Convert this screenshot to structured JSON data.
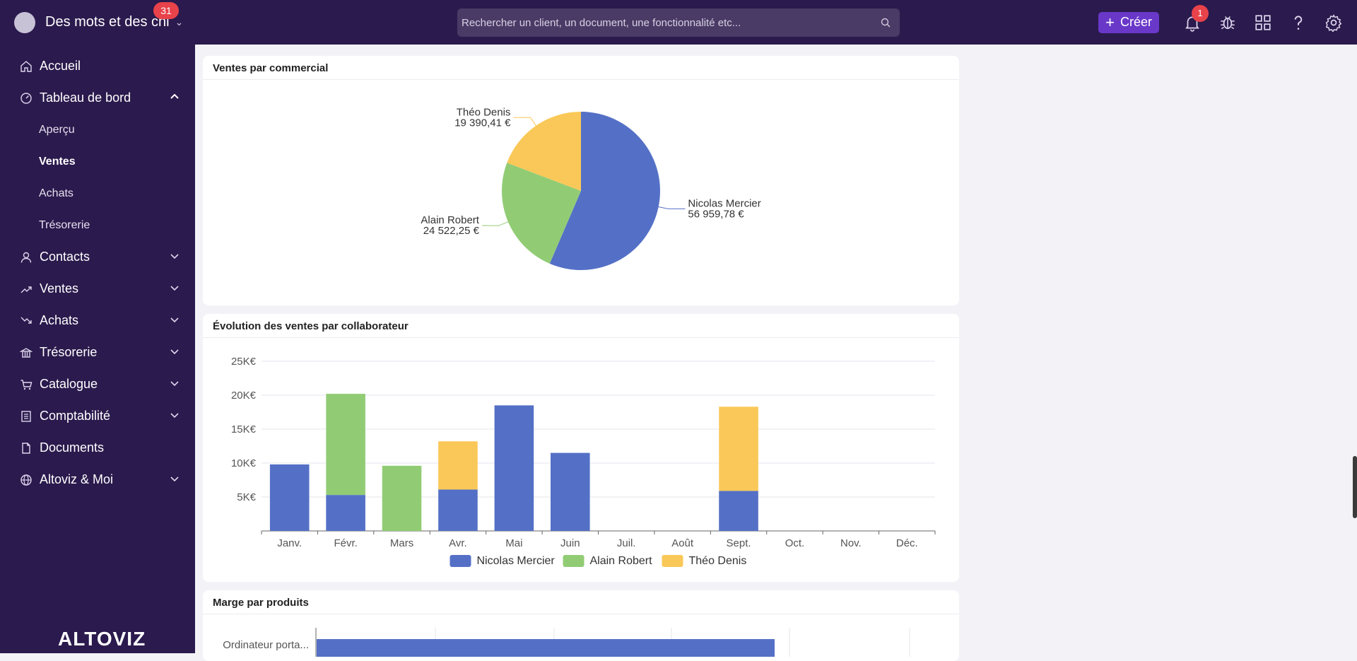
{
  "topbar": {
    "org_name": "Des mots et des chi",
    "org_badge": "31",
    "search_placeholder": "Rechercher un client, un document, une fonctionnalité etc...",
    "create_label": "Créer",
    "notif_count": "1"
  },
  "sidebar": {
    "items": [
      {
        "label": "Accueil",
        "icon": "home-icon"
      },
      {
        "label": "Tableau de bord",
        "icon": "dashboard-icon",
        "expanded": true,
        "children": [
          {
            "label": "Aperçu"
          },
          {
            "label": "Ventes",
            "active": true
          },
          {
            "label": "Achats"
          },
          {
            "label": "Trésorerie"
          }
        ]
      },
      {
        "label": "Contacts",
        "icon": "user-icon"
      },
      {
        "label": "Ventes",
        "icon": "trend-up-icon"
      },
      {
        "label": "Achats",
        "icon": "trend-down-icon"
      },
      {
        "label": "Trésorerie",
        "icon": "bank-icon"
      },
      {
        "label": "Catalogue",
        "icon": "cart-icon"
      },
      {
        "label": "Comptabilité",
        "icon": "ledger-icon"
      },
      {
        "label": "Documents",
        "icon": "document-icon"
      },
      {
        "label": "Altoviz & Moi",
        "icon": "globe-icon"
      }
    ],
    "logo": "ALTOVIZ"
  },
  "cards": {
    "pie_title": "Ventes par commercial",
    "bar_title": "Évolution des ventes par collaborateur",
    "margin_title": "Marge par produits"
  },
  "colors": {
    "nicolas": "#5470c6",
    "alain": "#91cc75",
    "theo": "#fac858",
    "sidebar_bg": "#2b1a4d",
    "accent": "#6938c9"
  },
  "chart_data": [
    {
      "type": "pie",
      "title": "Ventes par commercial",
      "slices": [
        {
          "name": "Nicolas Mercier",
          "value": 56959.78,
          "label": "56 959,78 €"
        },
        {
          "name": "Alain Robert",
          "value": 24522.25,
          "label": "24 522,25 €"
        },
        {
          "name": "Théo Denis",
          "value": 19390.41,
          "label": "19 390,41 €"
        }
      ]
    },
    {
      "type": "bar",
      "stacked": true,
      "title": "Évolution des ventes par collaborateur",
      "categories": [
        "Janv.",
        "Févr.",
        "Mars",
        "Avr.",
        "Mai",
        "Juin",
        "Juil.",
        "Août",
        "Sept.",
        "Oct.",
        "Nov.",
        "Déc."
      ],
      "series": [
        {
          "name": "Nicolas Mercier",
          "values": [
            9800,
            5300,
            0,
            6100,
            18500,
            11500,
            0,
            0,
            5900,
            0,
            0,
            0
          ]
        },
        {
          "name": "Alain Robert",
          "values": [
            0,
            14900,
            9600,
            0,
            0,
            0,
            0,
            0,
            0,
            0,
            0,
            0
          ]
        },
        {
          "name": "Théo Denis",
          "values": [
            0,
            0,
            0,
            7100,
            0,
            0,
            0,
            0,
            12400,
            0,
            0,
            0
          ]
        }
      ],
      "ylim": [
        0,
        25000
      ],
      "yticks": [
        "5K€",
        "10K€",
        "15K€",
        "20K€",
        "25K€"
      ],
      "legend": "bottom"
    },
    {
      "type": "bar",
      "orientation": "horizontal",
      "title": "Marge par produits",
      "categories": [
        "Ordinateur porta..."
      ]
    }
  ]
}
